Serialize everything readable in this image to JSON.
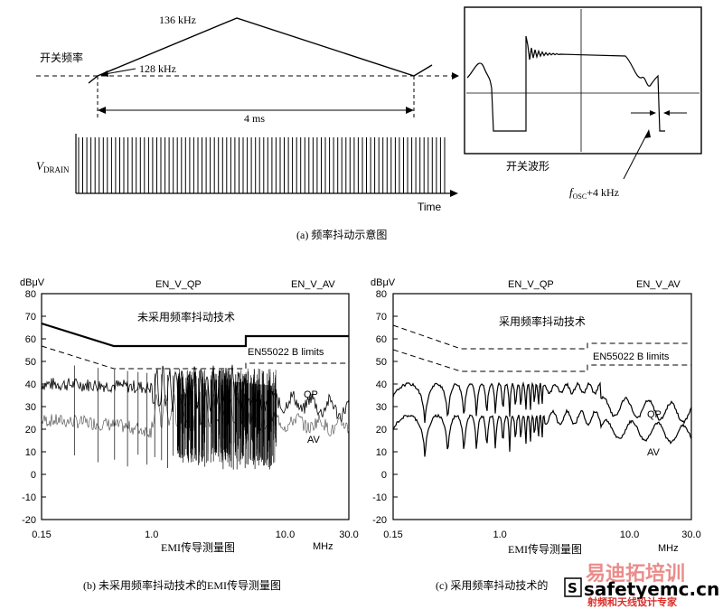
{
  "fig_a": {
    "freq_label": "开关频率",
    "f_high": "136 kHz",
    "f_low": "128 kHz",
    "period": "4 ms",
    "vdrain_main": "V",
    "vdrain_sub": "DRAIN",
    "time_label": "Time",
    "scope_caption": "开关波形",
    "fosc_main": "f",
    "fosc_sub": "OSC",
    "fosc_tail": "+4 kHz",
    "caption": "(a) 频率抖动示意图"
  },
  "fig_b": {
    "ylabel": "dBμV",
    "limit_qp": "EN_V_QP",
    "limit_av": "EN_V_AV",
    "note": "未采用频率抖动技术",
    "limits_label": "EN55022 B limits",
    "qp_label": "QP",
    "av_label": "AV",
    "xunit": "MHz",
    "xtitle": "EMI传导测量图",
    "caption": "(b) 未采用频率抖动技术的EMI传导测量图"
  },
  "fig_c": {
    "ylabel": "dBμV",
    "limit_qp": "EN_V_QP",
    "limit_av": "EN_V_AV",
    "note": "采用频率抖动技术",
    "limits_label": "EN55022 B limits",
    "qp_label": "QP",
    "av_label": "AV",
    "xunit": "MHz",
    "xtitle": "EMI传导测量图",
    "caption": "(c) 采用频率抖动技术的"
  },
  "axes": {
    "y_ticks": [
      "80",
      "70",
      "60",
      "50",
      "40",
      "30",
      "20",
      "10",
      "0",
      "-10",
      "-20"
    ],
    "x_ticks": [
      "0.15",
      "1.0",
      "10.0",
      "30.0"
    ]
  },
  "watermark": {
    "logo_letter": "S",
    "site": "safetyemc.cn",
    "brand": "易迪拓培训",
    "slogan": "射频和天线设计专家",
    "brand_color": "#d9302b"
  }
}
